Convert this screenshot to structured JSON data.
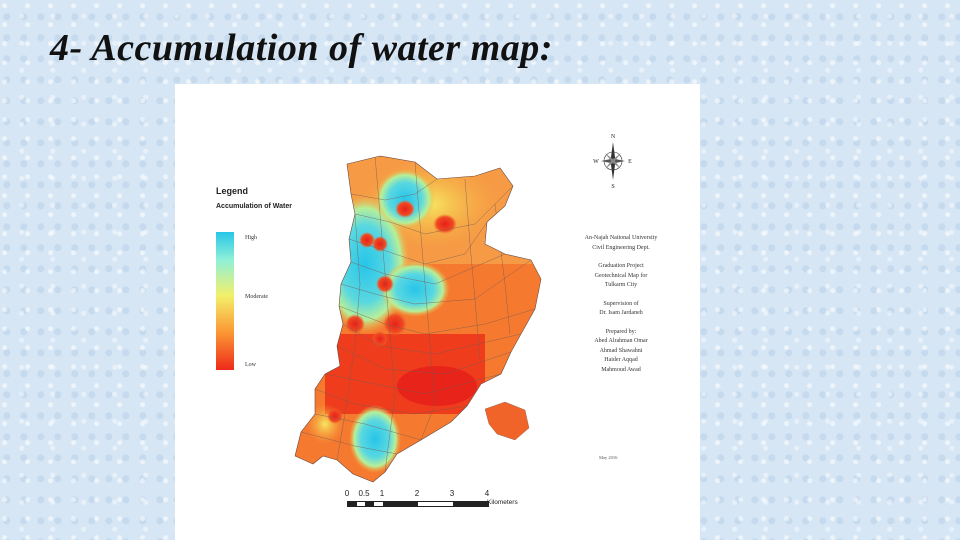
{
  "slide": {
    "title": "4- Accumulation of water map:"
  },
  "legend": {
    "title": "Legend",
    "subtitle": "Accumulation of Water",
    "high": "High",
    "moderate": "Moderate",
    "low": "Low",
    "colors": {
      "high": "#26c6e8",
      "moderate": "#f2f06a",
      "low": "#ee2a1a"
    }
  },
  "compass": {
    "n": "N",
    "s": "S",
    "e": "E",
    "w": "W"
  },
  "info": {
    "university": "An-Najah National University",
    "department": "Civil Engineering Dept.",
    "project_line1": "Graduation Project",
    "project_line2": "Geotechnical Map for",
    "project_line3": "Tulkarm City",
    "supervision_line1": "Supervision of",
    "supervisor": "Dr. Isam Jardaneh",
    "prepared_by": "Prepared by:",
    "authors": [
      "Abed Alrahman Omar",
      "Ahmad Shawahni",
      "Haider Aqqad",
      "Mahmoud Awad"
    ],
    "date": "May 2016"
  },
  "scale": {
    "ticks": [
      "0",
      "0.5",
      "1",
      "2",
      "3",
      "4"
    ],
    "units": "Kilometers"
  }
}
